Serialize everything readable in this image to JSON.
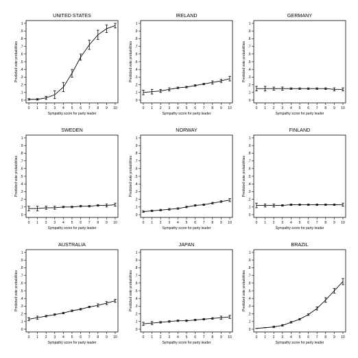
{
  "chart_data": [
    {
      "type": "line",
      "title": "UNITED STATES",
      "xlabel": "Sympathy score for party leader",
      "ylabel": "Predicted vote probabilities",
      "x": [
        0,
        1,
        2,
        3,
        4,
        5,
        6,
        7,
        8,
        9,
        10
      ],
      "xticks": [
        "0",
        "1",
        "2",
        "3",
        "4",
        "5",
        "6",
        "7",
        "8",
        "9",
        "10"
      ],
      "yticks": [
        "0",
        ".1",
        ".2",
        ".3",
        ".4",
        ".5",
        ".6",
        ".7",
        ".8",
        ".9",
        "1"
      ],
      "ylim": [
        0,
        1
      ],
      "series": [
        {
          "values": [
            0.01,
            0.01,
            0.03,
            0.07,
            0.17,
            0.35,
            0.56,
            0.72,
            0.85,
            0.93,
            0.97
          ],
          "errors": [
            0.01,
            0.01,
            0.02,
            0.05,
            0.06,
            0.05,
            0.04,
            0.06,
            0.06,
            0.05,
            0.03
          ]
        }
      ]
    },
    {
      "type": "line",
      "title": "IRELAND",
      "xlabel": "Sympathy score for party leader",
      "ylabel": "Predicted vote probabilities",
      "x": [
        0,
        1,
        2,
        3,
        4,
        5,
        6,
        7,
        8,
        9,
        10
      ],
      "xticks": [
        "0",
        "1",
        "2",
        "3",
        "4",
        "5",
        "6",
        "7",
        "8",
        "9",
        "10"
      ],
      "yticks": [
        "0",
        ".1",
        ".2",
        ".3",
        ".4",
        ".5",
        ".6",
        ".7",
        ".8",
        ".9",
        "1"
      ],
      "ylim": [
        0,
        1
      ],
      "series": [
        {
          "values": [
            0.1,
            0.11,
            0.12,
            0.14,
            0.16,
            0.17,
            0.19,
            0.21,
            0.23,
            0.25,
            0.28
          ],
          "errors": [
            0.03,
            0.03,
            0.02,
            0.02,
            0.01,
            0.01,
            0.01,
            0.01,
            0.02,
            0.02,
            0.03
          ]
        }
      ]
    },
    {
      "type": "line",
      "title": "GERMANY",
      "xlabel": "Sympathy score for party leader",
      "ylabel": "Predicted vote probabilities",
      "x": [
        0,
        1,
        2,
        3,
        4,
        5,
        6,
        7,
        8,
        9,
        10
      ],
      "xticks": [
        "0",
        "1",
        "2",
        "3",
        "4",
        "5",
        "6",
        "7",
        "8",
        "9",
        "10"
      ],
      "yticks": [
        "0",
        ".1",
        ".2",
        ".3",
        ".4",
        ".5",
        ".6",
        ".7",
        ".8",
        ".9",
        "1"
      ],
      "ylim": [
        0,
        1
      ],
      "series": [
        {
          "values": [
            0.15,
            0.15,
            0.15,
            0.15,
            0.15,
            0.15,
            0.15,
            0.15,
            0.15,
            0.14,
            0.14
          ],
          "errors": [
            0.03,
            0.03,
            0.02,
            0.02,
            0.01,
            0.01,
            0.01,
            0.01,
            0.01,
            0.02,
            0.02
          ]
        }
      ]
    },
    {
      "type": "line",
      "title": "SWEDEN",
      "xlabel": "Sympathy score for party leader",
      "ylabel": "Predicted vote probabilities",
      "x": [
        0,
        1,
        2,
        3,
        4,
        5,
        6,
        7,
        8,
        9,
        10
      ],
      "xticks": [
        "0",
        "1",
        "2",
        "3",
        "4",
        "5",
        "6",
        "7",
        "8",
        "9",
        "10"
      ],
      "yticks": [
        "0",
        ".1",
        ".2",
        ".3",
        ".4",
        ".5",
        ".6",
        ".7",
        ".8",
        ".9",
        "1"
      ],
      "ylim": [
        0,
        1
      ],
      "series": [
        {
          "values": [
            0.08,
            0.08,
            0.09,
            0.09,
            0.1,
            0.1,
            0.11,
            0.11,
            0.12,
            0.12,
            0.13
          ],
          "errors": [
            0.03,
            0.03,
            0.02,
            0.02,
            0.01,
            0.01,
            0.01,
            0.01,
            0.01,
            0.02,
            0.02
          ]
        }
      ]
    },
    {
      "type": "line",
      "title": "NORWAY",
      "xlabel": "Sympathy score for party leader",
      "ylabel": "Predicted vote probabilities",
      "x": [
        0,
        1,
        2,
        3,
        4,
        5,
        6,
        7,
        8,
        9,
        10
      ],
      "xticks": [
        "0",
        "1",
        "2",
        "3",
        "4",
        "5",
        "6",
        "7",
        "8",
        "9",
        "10"
      ],
      "yticks": [
        "0",
        ".1",
        ".2",
        ".3",
        ".4",
        ".5",
        ".6",
        ".7",
        ".8",
        ".9",
        "1"
      ],
      "ylim": [
        0,
        1
      ],
      "series": [
        {
          "values": [
            0.04,
            0.05,
            0.06,
            0.07,
            0.08,
            0.1,
            0.12,
            0.13,
            0.15,
            0.17,
            0.19
          ],
          "errors": [
            0.01,
            0.01,
            0.01,
            0.01,
            0.01,
            0.01,
            0.01,
            0.01,
            0.01,
            0.01,
            0.02
          ]
        }
      ]
    },
    {
      "type": "line",
      "title": "FINLAND",
      "xlabel": "Sympathy score for party leader",
      "ylabel": "Predicted vote probabilities",
      "x": [
        0,
        1,
        2,
        3,
        4,
        5,
        6,
        7,
        8,
        9,
        10
      ],
      "xticks": [
        "0",
        "1",
        "2",
        "3",
        "4",
        "5",
        "6",
        "7",
        "8",
        "9",
        "10"
      ],
      "yticks": [
        "0",
        ".1",
        ".2",
        ".3",
        ".4",
        ".5",
        ".6",
        ".7",
        ".8",
        ".9",
        "1"
      ],
      "ylim": [
        0,
        1
      ],
      "series": [
        {
          "values": [
            0.12,
            0.12,
            0.12,
            0.12,
            0.13,
            0.13,
            0.13,
            0.13,
            0.13,
            0.13,
            0.13
          ],
          "errors": [
            0.03,
            0.02,
            0.02,
            0.01,
            0.01,
            0.01,
            0.01,
            0.01,
            0.01,
            0.01,
            0.02
          ]
        }
      ]
    },
    {
      "type": "line",
      "title": "AUSTRALIA",
      "xlabel": "Sympathy score for party leader",
      "ylabel": "Predicted vote probabilities",
      "x": [
        0,
        1,
        2,
        3,
        4,
        5,
        6,
        7,
        8,
        9,
        10
      ],
      "xticks": [
        "0",
        "1",
        "2",
        "3",
        "4",
        "5",
        "6",
        "7",
        "8",
        "9",
        "10"
      ],
      "yticks": [
        "0",
        ".1",
        ".2",
        ".3",
        ".4",
        ".5",
        ".6",
        ".7",
        ".8",
        ".9",
        "1"
      ],
      "ylim": [
        0,
        1
      ],
      "series": [
        {
          "values": [
            0.13,
            0.15,
            0.17,
            0.19,
            0.21,
            0.24,
            0.26,
            0.29,
            0.31,
            0.34,
            0.37
          ],
          "errors": [
            0.02,
            0.02,
            0.01,
            0.01,
            0.01,
            0.01,
            0.01,
            0.01,
            0.02,
            0.02,
            0.02
          ]
        }
      ]
    },
    {
      "type": "line",
      "title": "JAPAN",
      "xlabel": "Sympathy score for party leader",
      "ylabel": "Predicted vote probabilities",
      "x": [
        0,
        1,
        2,
        3,
        4,
        5,
        6,
        7,
        8,
        9,
        10
      ],
      "xticks": [
        "0",
        "1",
        "2",
        "3",
        "4",
        "5",
        "6",
        "7",
        "8",
        "9",
        "10"
      ],
      "yticks": [
        "0",
        ".1",
        ".2",
        ".3",
        ".4",
        ".5",
        ".6",
        ".7",
        ".8",
        ".9",
        "1"
      ],
      "ylim": [
        0,
        1
      ],
      "series": [
        {
          "values": [
            0.07,
            0.08,
            0.09,
            0.1,
            0.11,
            0.11,
            0.12,
            0.13,
            0.14,
            0.15,
            0.16
          ],
          "errors": [
            0.02,
            0.02,
            0.01,
            0.01,
            0.01,
            0.01,
            0.01,
            0.01,
            0.01,
            0.02,
            0.02
          ]
        }
      ]
    },
    {
      "type": "line",
      "title": "BRAZIL",
      "xlabel": "Sympathy score for party leader",
      "ylabel": "Predicted vote probabilities",
      "x": [
        0,
        1,
        2,
        3,
        4,
        5,
        6,
        7,
        8,
        9,
        10
      ],
      "xticks": [
        "0",
        "1",
        "2",
        "3",
        "4",
        "5",
        "6",
        "7",
        "8",
        "9",
        "10"
      ],
      "yticks": [
        "0",
        ".1",
        ".2",
        ".3",
        ".4",
        ".5",
        ".6",
        ".7",
        ".8",
        ".9",
        "1"
      ],
      "ylim": [
        0,
        1
      ],
      "series": [
        {
          "values": [
            0.01,
            0.02,
            0.03,
            0.05,
            0.09,
            0.13,
            0.19,
            0.27,
            0.38,
            0.5,
            0.62
          ],
          "errors": [
            0.0,
            0.0,
            0.01,
            0.01,
            0.01,
            0.01,
            0.01,
            0.02,
            0.03,
            0.03,
            0.04
          ]
        }
      ]
    }
  ]
}
